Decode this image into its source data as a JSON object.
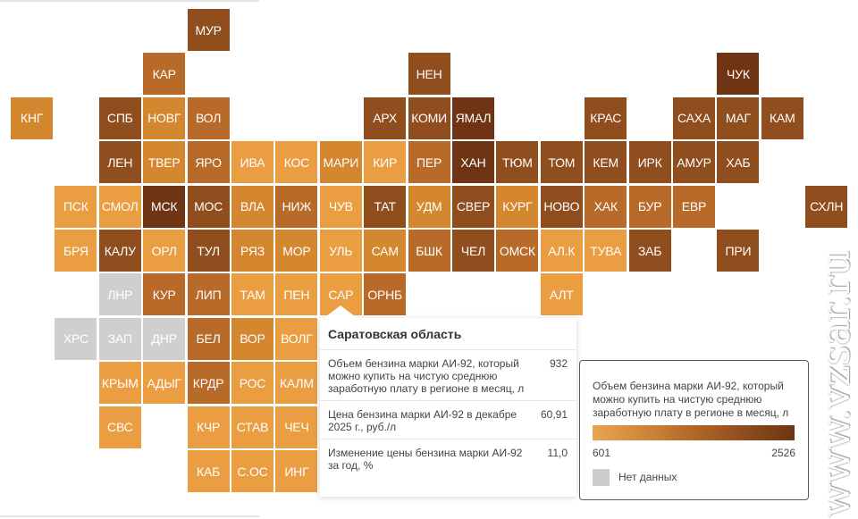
{
  "palette": [
    "#eb9d42",
    "#d5872f",
    "#b86a29",
    "#904d1e",
    "#6e3414"
  ],
  "no_data_color": "#cfcfcf",
  "regions": [
    {
      "label": "МУР",
      "r": 0,
      "c": 4,
      "lv": 3
    },
    {
      "label": "КАР",
      "r": 1,
      "c": 3,
      "lv": 2
    },
    {
      "label": "НЕН",
      "r": 1,
      "c": 9,
      "lv": 3
    },
    {
      "label": "ЧУК",
      "r": 1,
      "c": 16,
      "lv": 4
    },
    {
      "label": "КНГ",
      "r": 2,
      "c": 0,
      "lv": 1
    },
    {
      "label": "СПБ",
      "r": 2,
      "c": 2,
      "lv": 3
    },
    {
      "label": "НОВГ",
      "r": 2,
      "c": 3,
      "lv": 1
    },
    {
      "label": "ВОЛ",
      "r": 2,
      "c": 4,
      "lv": 2
    },
    {
      "label": "АРХ",
      "r": 2,
      "c": 8,
      "lv": 3
    },
    {
      "label": "КОМИ",
      "r": 2,
      "c": 9,
      "lv": 3
    },
    {
      "label": "ЯМАЛ",
      "r": 2,
      "c": 10,
      "lv": 4
    },
    {
      "label": "КРАС",
      "r": 2,
      "c": 13,
      "lv": 3
    },
    {
      "label": "САХА",
      "r": 2,
      "c": 15,
      "lv": 3
    },
    {
      "label": "МАГ",
      "r": 2,
      "c": 16,
      "lv": 3
    },
    {
      "label": "КАМ",
      "r": 2,
      "c": 17,
      "lv": 3
    },
    {
      "label": "ЛЕН",
      "r": 3,
      "c": 2,
      "lv": 3
    },
    {
      "label": "ТВЕР",
      "r": 3,
      "c": 3,
      "lv": 1
    },
    {
      "label": "ЯРО",
      "r": 3,
      "c": 4,
      "lv": 2
    },
    {
      "label": "ИВА",
      "r": 3,
      "c": 5,
      "lv": 0
    },
    {
      "label": "КОС",
      "r": 3,
      "c": 6,
      "lv": 0
    },
    {
      "label": "МАРИ",
      "r": 3,
      "c": 7,
      "lv": 1
    },
    {
      "label": "КИР",
      "r": 3,
      "c": 8,
      "lv": 0
    },
    {
      "label": "ПЕР",
      "r": 3,
      "c": 9,
      "lv": 2
    },
    {
      "label": "ХАН",
      "r": 3,
      "c": 10,
      "lv": 4
    },
    {
      "label": "ТЮМ",
      "r": 3,
      "c": 11,
      "lv": 3
    },
    {
      "label": "ТОМ",
      "r": 3,
      "c": 12,
      "lv": 3
    },
    {
      "label": "КЕМ",
      "r": 3,
      "c": 13,
      "lv": 3
    },
    {
      "label": "ИРК",
      "r": 3,
      "c": 14,
      "lv": 3
    },
    {
      "label": "АМУР",
      "r": 3,
      "c": 15,
      "lv": 3
    },
    {
      "label": "ХАБ",
      "r": 3,
      "c": 16,
      "lv": 3
    },
    {
      "label": "ПСК",
      "r": 4,
      "c": 1,
      "lv": 0
    },
    {
      "label": "СМОЛ",
      "r": 4,
      "c": 2,
      "lv": 0
    },
    {
      "label": "МСК",
      "r": 4,
      "c": 3,
      "lv": 4
    },
    {
      "label": "МОС",
      "r": 4,
      "c": 4,
      "lv": 3
    },
    {
      "label": "ВЛА",
      "r": 4,
      "c": 5,
      "lv": 1
    },
    {
      "label": "НИЖ",
      "r": 4,
      "c": 6,
      "lv": 2
    },
    {
      "label": "ЧУВ",
      "r": 4,
      "c": 7,
      "lv": 0
    },
    {
      "label": "ТАТ",
      "r": 4,
      "c": 8,
      "lv": 3
    },
    {
      "label": "УДМ",
      "r": 4,
      "c": 9,
      "lv": 1
    },
    {
      "label": "СВЕР",
      "r": 4,
      "c": 10,
      "lv": 3
    },
    {
      "label": "КУРГ",
      "r": 4,
      "c": 11,
      "lv": 1
    },
    {
      "label": "НОВО",
      "r": 4,
      "c": 12,
      "lv": 3
    },
    {
      "label": "ХАК",
      "r": 4,
      "c": 13,
      "lv": 2
    },
    {
      "label": "БУР",
      "r": 4,
      "c": 14,
      "lv": 2
    },
    {
      "label": "ЕВР",
      "r": 4,
      "c": 15,
      "lv": 2
    },
    {
      "label": "СХЛН",
      "r": 4,
      "c": 18,
      "lv": 3
    },
    {
      "label": "БРЯ",
      "r": 5,
      "c": 1,
      "lv": 0
    },
    {
      "label": "КАЛУ",
      "r": 5,
      "c": 2,
      "lv": 3
    },
    {
      "label": "ОРЛ",
      "r": 5,
      "c": 3,
      "lv": 0
    },
    {
      "label": "ТУЛ",
      "r": 5,
      "c": 4,
      "lv": 3
    },
    {
      "label": "РЯЗ",
      "r": 5,
      "c": 5,
      "lv": 1
    },
    {
      "label": "МОР",
      "r": 5,
      "c": 6,
      "lv": 1
    },
    {
      "label": "УЛЬ",
      "r": 5,
      "c": 7,
      "lv": 0
    },
    {
      "label": "САМ",
      "r": 5,
      "c": 8,
      "lv": 1
    },
    {
      "label": "БШК",
      "r": 5,
      "c": 9,
      "lv": 2
    },
    {
      "label": "ЧЕЛ",
      "r": 5,
      "c": 10,
      "lv": 3
    },
    {
      "label": "ОМСК",
      "r": 5,
      "c": 11,
      "lv": 2
    },
    {
      "label": "АЛ.К",
      "r": 5,
      "c": 12,
      "lv": 0
    },
    {
      "label": "ТУВА",
      "r": 5,
      "c": 13,
      "lv": 0
    },
    {
      "label": "ЗАБ",
      "r": 5,
      "c": 14,
      "lv": 3
    },
    {
      "label": "ПРИ",
      "r": 5,
      "c": 16,
      "lv": 3
    },
    {
      "label": "ЛНР",
      "r": 6,
      "c": 2,
      "lv": -1
    },
    {
      "label": "КУР",
      "r": 6,
      "c": 3,
      "lv": 2
    },
    {
      "label": "ЛИП",
      "r": 6,
      "c": 4,
      "lv": 2
    },
    {
      "label": "ТАМ",
      "r": 6,
      "c": 5,
      "lv": 0
    },
    {
      "label": "ПЕН",
      "r": 6,
      "c": 6,
      "lv": 0
    },
    {
      "label": "САР",
      "r": 6,
      "c": 7,
      "lv": 0
    },
    {
      "label": "ОРНБ",
      "r": 6,
      "c": 8,
      "lv": 2
    },
    {
      "label": "АЛТ",
      "r": 6,
      "c": 12,
      "lv": 0
    },
    {
      "label": "ХРС",
      "r": 7,
      "c": 1,
      "lv": -1
    },
    {
      "label": "ЗАП",
      "r": 7,
      "c": 2,
      "lv": -1
    },
    {
      "label": "ДНР",
      "r": 7,
      "c": 3,
      "lv": -1
    },
    {
      "label": "БЕЛ",
      "r": 7,
      "c": 4,
      "lv": 2
    },
    {
      "label": "ВОР",
      "r": 7,
      "c": 5,
      "lv": 1
    },
    {
      "label": "ВОЛГ",
      "r": 7,
      "c": 6,
      "lv": 0
    },
    {
      "label": "КРЫМ",
      "r": 8,
      "c": 2,
      "lv": 0
    },
    {
      "label": "АДЫГ",
      "r": 8,
      "c": 3,
      "lv": 0
    },
    {
      "label": "КРДР",
      "r": 8,
      "c": 4,
      "lv": 2
    },
    {
      "label": "РОС",
      "r": 8,
      "c": 5,
      "lv": 0
    },
    {
      "label": "КАЛМ",
      "r": 8,
      "c": 6,
      "lv": 0
    },
    {
      "label": "СВС",
      "r": 9,
      "c": 2,
      "lv": 0
    },
    {
      "label": "КЧР",
      "r": 9,
      "c": 4,
      "lv": 0
    },
    {
      "label": "СТАВ",
      "r": 9,
      "c": 5,
      "lv": 0
    },
    {
      "label": "ЧЕЧ",
      "r": 9,
      "c": 6,
      "lv": 0
    },
    {
      "label": "КАБ",
      "r": 10,
      "c": 4,
      "lv": 0
    },
    {
      "label": "С.ОС",
      "r": 10,
      "c": 5,
      "lv": 0
    },
    {
      "label": "ИНГ",
      "r": 10,
      "c": 6,
      "lv": 0
    }
  ],
  "tooltip": {
    "title": "Саратовская область",
    "rows": [
      {
        "label": "Объем бензина марки АИ-92, который можно купить на чистую среднюю заработную плату в регионе в месяц, л",
        "value": "932"
      },
      {
        "label": "Цена бензина марки АИ-92 в декабре 2025 г., руб./л",
        "value": "60,91"
      },
      {
        "label": "Изменение цены бензина марки АИ-92 за год, %",
        "value": "11,0"
      }
    ]
  },
  "legend": {
    "title": "Объем бензина марки АИ-92, который можно купить на чистую среднюю заработную плату в регионе в месяц, л",
    "min": "601",
    "max": "2526",
    "no_data": "Нет данных"
  },
  "watermark": "www.vzsar.ru"
}
